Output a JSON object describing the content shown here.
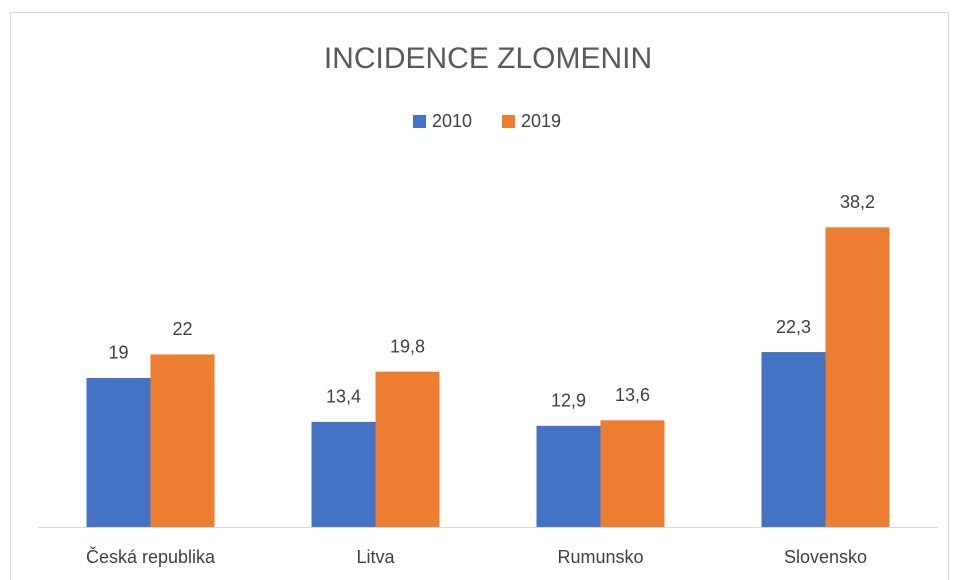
{
  "chart_data": {
    "type": "bar",
    "title": "INCIDENCE ZLOMENIN",
    "categories": [
      "Česká republika",
      "Litva",
      "Rumunsko",
      "Slovensko"
    ],
    "series": [
      {
        "name": "2010",
        "color": "#4472c4",
        "values": [
          19,
          13.4,
          12.9,
          22.3
        ],
        "value_labels": [
          "19",
          "13,4",
          "12,9",
          "22,3"
        ]
      },
      {
        "name": "2019",
        "color": "#ed7d31",
        "values": [
          22,
          19.8,
          13.6,
          38.2
        ],
        "value_labels": [
          "22",
          "19,8",
          "13,6",
          "38,2"
        ]
      }
    ],
    "ylim": [
      0,
      45
    ],
    "grid": false,
    "legend": "top"
  }
}
